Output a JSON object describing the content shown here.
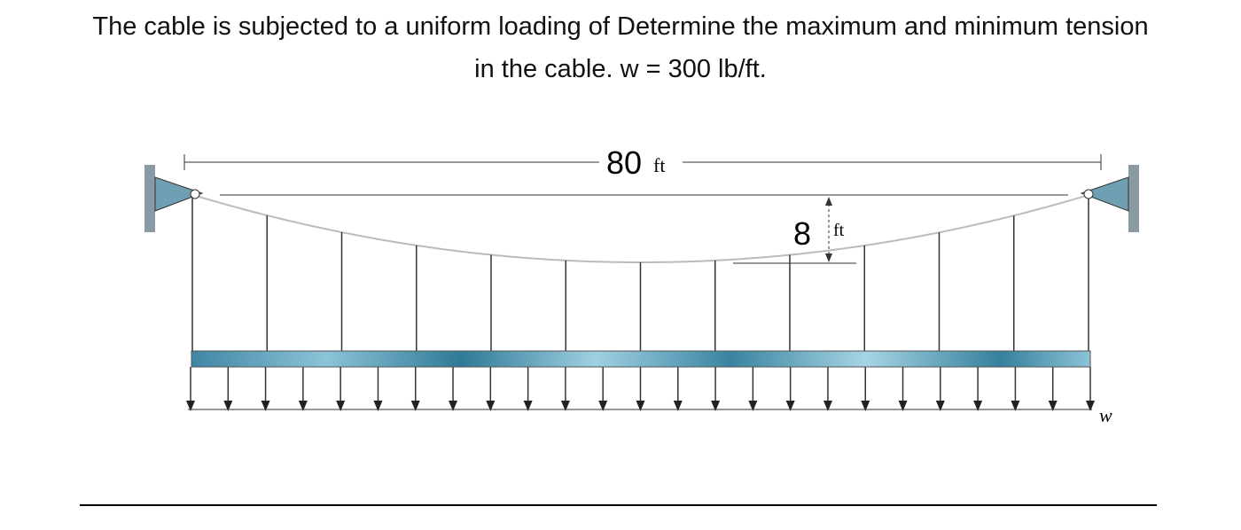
{
  "question": {
    "lines": [
      "The cable is subjected to a uniform loading of Determine the maximum and minimum tension",
      "in the cable. w = 300 lb/ft."
    ]
  },
  "diagram": {
    "span": "80",
    "span_unit": "ft",
    "sag": "8",
    "sag_unit": "ft",
    "load_label": "w"
  }
}
